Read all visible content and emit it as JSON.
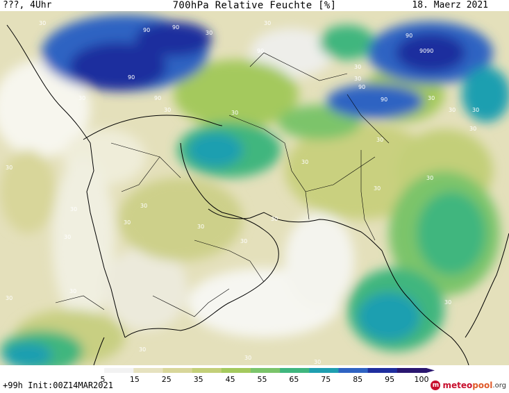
{
  "header": {
    "left": "???, 4Uhr",
    "title": "700hPa Relative Feuchte [%]",
    "date": "18. Maerz 2021"
  },
  "footer": {
    "run_info": "+99h Init:00Z14MAR2021"
  },
  "logo": {
    "name_part1": "meteo",
    "name_part2": "pool",
    "name_part3": ".org"
  },
  "colorbar": {
    "ticks": [
      "5",
      "15",
      "25",
      "35",
      "45",
      "55",
      "65",
      "75",
      "85",
      "95",
      "100"
    ],
    "colors": [
      "#ffffff",
      "#f2f2f2",
      "#e6e2bf",
      "#d8d69a",
      "#c3cf79",
      "#a4c95d",
      "#7bc46a",
      "#3fb67e",
      "#1f9fb0",
      "#2f63c2",
      "#1f2e9e",
      "#2a1670"
    ]
  },
  "map": {
    "contour_labels": [
      "30",
      "30",
      "30",
      "30",
      "30",
      "30",
      "30",
      "30",
      "30",
      "30",
      "30",
      "30",
      "30",
      "30",
      "30",
      "30",
      "30",
      "30",
      "30",
      "30",
      "30",
      "30",
      "30",
      "30",
      "30",
      "30",
      "30",
      "30",
      "30",
      "30",
      "90",
      "90",
      "90",
      "90",
      "90",
      "90",
      "90",
      "9090",
      "90"
    ]
  }
}
